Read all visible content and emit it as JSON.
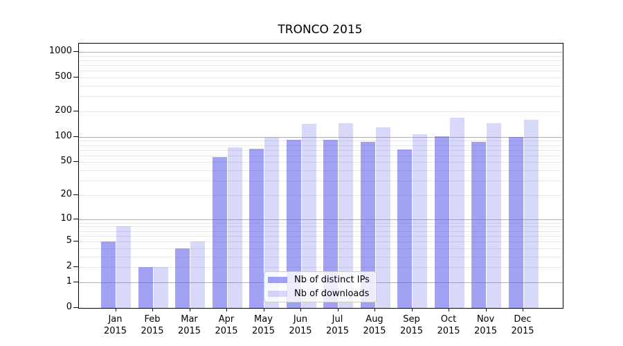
{
  "chart_data": {
    "type": "bar",
    "title": "TRONCO 2015",
    "xlabel": "",
    "ylabel": "",
    "yscale": "symlog-log1p",
    "ylim": [
      0,
      1250
    ],
    "y_ticks": [
      0,
      1,
      2,
      5,
      10,
      20,
      50,
      100,
      200,
      500,
      1000
    ],
    "x_tick_labels": [
      [
        "Jan",
        "2015"
      ],
      [
        "Feb",
        "2015"
      ],
      [
        "Mar",
        "2015"
      ],
      [
        "Apr",
        "2015"
      ],
      [
        "May",
        "2015"
      ],
      [
        "Jun",
        "2015"
      ],
      [
        "Jul",
        "2015"
      ],
      [
        "Aug",
        "2015"
      ],
      [
        "Sep",
        "2015"
      ],
      [
        "Oct",
        "2015"
      ],
      [
        "Nov",
        "2015"
      ],
      [
        "Dec",
        "2015"
      ]
    ],
    "series": [
      {
        "name": "Nb of distinct IPs",
        "values": [
          5,
          2,
          4,
          58,
          72,
          92,
          93,
          88,
          71,
          102,
          88,
          100
        ]
      },
      {
        "name": "Nb of downloads",
        "values": [
          8,
          2,
          5,
          75,
          97,
          142,
          144,
          129,
          107,
          168,
          145,
          160
        ]
      }
    ],
    "legend": {
      "position": "lower center"
    },
    "grid": "on",
    "colors": {
      "bar_base": "#5a5aeb",
      "ips_alpha": 0.56,
      "downloads_alpha": 0.24,
      "grid_major": "#b0b0b0",
      "grid_minor": "#e8e8e8",
      "axis": "#000000",
      "legend_border": "#cccccc"
    }
  }
}
